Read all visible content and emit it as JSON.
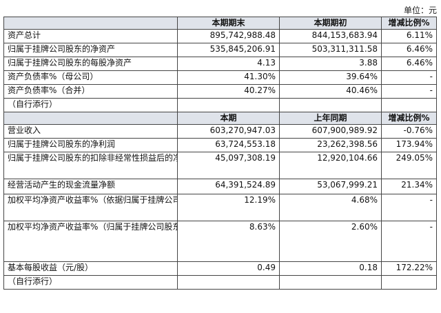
{
  "unit_label": "单位：元",
  "section1": {
    "headers": [
      "",
      "本期期末",
      "本期期初",
      "增减比例%"
    ],
    "rows": [
      {
        "label": "资产总计",
        "a": "895,742,988.48",
        "b": "844,153,683.94",
        "c": "6.11%"
      },
      {
        "label": "归属于挂牌公司股东的净资产",
        "a": "535,845,206.91",
        "b": "503,311,311.58",
        "c": "6.46%"
      },
      {
        "label": "归属于挂牌公司股东的每股净资产",
        "a": "4.13",
        "b": "3.88",
        "c": "6.46%"
      },
      {
        "label": "资产负债率%（母公司）",
        "a": "41.30%",
        "b": "39.64%",
        "c": "-"
      },
      {
        "label": "资产负债率%（合并）",
        "a": "40.27%",
        "b": "40.46%",
        "c": "-"
      },
      {
        "label": "（自行添行）",
        "a": "",
        "b": "",
        "c": ""
      }
    ]
  },
  "section2": {
    "headers": [
      "",
      "本期",
      "上年同期",
      "增减比例%"
    ],
    "rows": [
      {
        "label": "营业收入",
        "a": "603,270,947.03",
        "b": "607,900,989.92",
        "c": "-0.76%"
      },
      {
        "label": "归属于挂牌公司股东的净利润",
        "a": "63,724,553.18",
        "b": "23,262,398.56",
        "c": "173.94%"
      },
      {
        "label": "归属于挂牌公司股东的扣除非经常性损益后的净利润",
        "a": "45,097,308.19",
        "b": "12,920,104.66",
        "c": "249.05%"
      },
      {
        "label": "经营活动产生的现金流量净额",
        "a": "64,391,524.89",
        "b": "53,067,999.21",
        "c": "21.34%"
      },
      {
        "label": "加权平均净资产收益率%（依据归属于挂牌公司股东的净利润计算）",
        "a": "12.19%",
        "b": "4.68%",
        "c": "-"
      },
      {
        "label": "加权平均净资产收益率%（归属于挂牌公司股东的扣除非经常性损益后的净利润计算）",
        "a": "8.63%",
        "b": "2.60%",
        "c": "-"
      },
      {
        "label": "基本每股收益（元/股）",
        "a": "0.49",
        "b": "0.18",
        "c": "172.22%"
      },
      {
        "label": "（自行添行）",
        "a": "",
        "b": "",
        "c": ""
      }
    ]
  }
}
